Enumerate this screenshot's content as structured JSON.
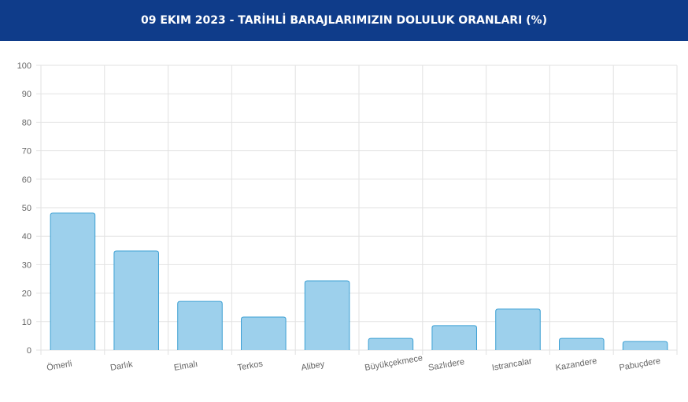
{
  "chart_data": {
    "type": "bar",
    "title": "09 EKIM 2023 - TARİHLİ BARAJLARIMIZIN DOLULUK ORANLARI (%)",
    "categories": [
      "Ömerli",
      "Darlık",
      "Elmalı",
      "Terkos",
      "Alibey",
      "Büyükçekmece",
      "Sazlıdere",
      "Istrancalar",
      "Kazandere",
      "Pabuçdere"
    ],
    "values": [
      48.1,
      34.8,
      17.1,
      11.6,
      24.3,
      4.1,
      8.6,
      14.4,
      4.1,
      3.0
    ],
    "color": "#9dd0ec",
    "border_color": "#3b9fd3",
    "ylim": [
      0,
      100
    ],
    "yticks": [
      0,
      10,
      20,
      30,
      40,
      50,
      60,
      70,
      80,
      90,
      100
    ],
    "grid": true
  }
}
